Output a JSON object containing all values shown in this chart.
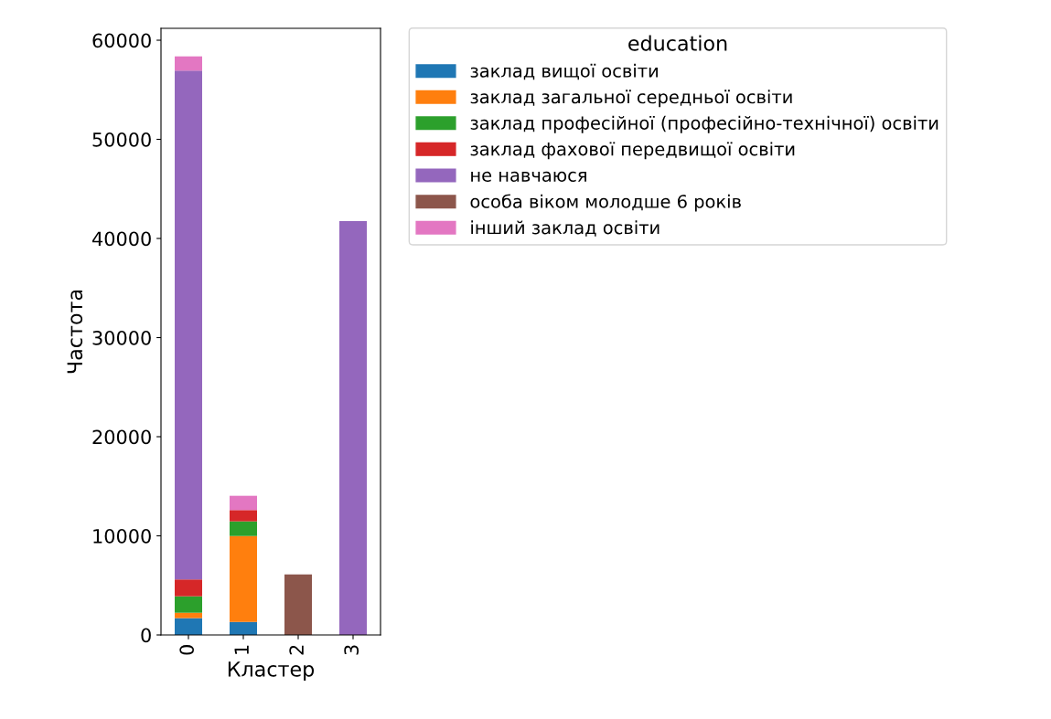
{
  "chart_data": {
    "type": "bar",
    "stacked": true,
    "xlabel": "Кластер",
    "ylabel": "Частота",
    "legend_title": "education",
    "legend": "top right",
    "categories": [
      "0",
      "1",
      "2",
      "3"
    ],
    "ylim": [
      0,
      61200
    ],
    "yticks": [
      0,
      10000,
      20000,
      30000,
      40000,
      50000,
      60000
    ],
    "grid": false,
    "series": [
      {
        "name": "заклад вищої освіти",
        "color": "#1f77b4",
        "values": [
          1700,
          1320,
          0,
          0
        ]
      },
      {
        "name": "заклад загальної середньої освіти",
        "color": "#ff7f0e",
        "values": [
          540,
          8660,
          0,
          0
        ]
      },
      {
        "name": "заклад професійної (професійно-технічної) освіти",
        "color": "#2ca02c",
        "values": [
          1660,
          1480,
          0,
          0
        ]
      },
      {
        "name": "заклад фахової передвищої освіти",
        "color": "#d62728",
        "values": [
          1700,
          1140,
          0,
          0
        ]
      },
      {
        "name": "не навчаюся",
        "color": "#9467bd",
        "values": [
          51330,
          0,
          0,
          41750
        ]
      },
      {
        "name": "особа віком молодше 6 років",
        "color": "#8c564b",
        "values": [
          0,
          0,
          6110,
          0
        ]
      },
      {
        "name": "інший заклад освіти",
        "color": "#e377c2",
        "values": [
          1440,
          1440,
          0,
          0
        ]
      }
    ]
  }
}
